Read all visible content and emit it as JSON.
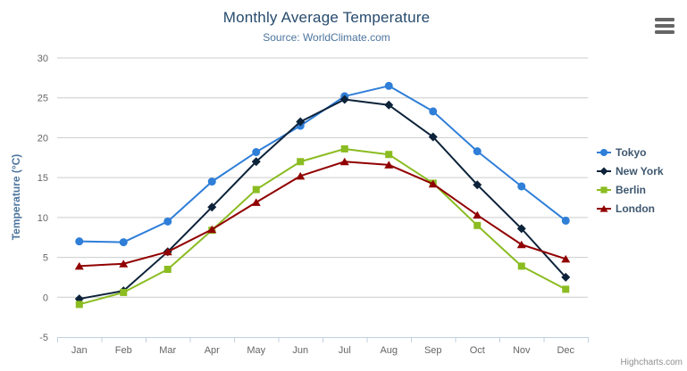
{
  "header": {
    "title": "Monthly Average Temperature",
    "subtitle": "Source: WorldClimate.com"
  },
  "icons": {
    "context_menu": "hamburger-icon"
  },
  "credit": {
    "text": "Highcharts.com"
  },
  "chart_data": {
    "type": "line",
    "title": "Monthly Average Temperature",
    "subtitle": "Source: WorldClimate.com",
    "categories": [
      "Jan",
      "Feb",
      "Mar",
      "Apr",
      "May",
      "Jun",
      "Jul",
      "Aug",
      "Sep",
      "Oct",
      "Nov",
      "Dec"
    ],
    "series": [
      {
        "name": "Tokyo",
        "color": "#2f7ed8",
        "marker": "circle",
        "values": [
          7.0,
          6.9,
          9.5,
          14.5,
          18.2,
          21.5,
          25.2,
          26.5,
          23.3,
          18.3,
          13.9,
          9.6
        ]
      },
      {
        "name": "New York",
        "color": "#0d233a",
        "marker": "diamond",
        "values": [
          -0.2,
          0.8,
          5.7,
          11.3,
          17.0,
          22.0,
          24.8,
          24.1,
          20.1,
          14.1,
          8.6,
          2.5
        ]
      },
      {
        "name": "Berlin",
        "color": "#8bbc21",
        "marker": "square",
        "values": [
          -0.9,
          0.6,
          3.5,
          8.4,
          13.5,
          17.0,
          18.6,
          17.9,
          14.3,
          9.0,
          3.9,
          1.0
        ]
      },
      {
        "name": "London",
        "color": "#910000",
        "marker": "triangle",
        "values": [
          3.9,
          4.2,
          5.7,
          8.5,
          11.9,
          15.2,
          17.0,
          16.6,
          14.2,
          10.3,
          6.6,
          4.8
        ]
      }
    ],
    "xlabel": "",
    "ylabel": "Temperature (°C)",
    "ylim": [
      -5,
      30
    ],
    "ytick_step": 5,
    "grid": true,
    "legend_position": "right",
    "colors": {
      "gridline": "#cccccc",
      "axis_line": "#c0d0e0",
      "axis_label": "#666666",
      "title": "#274b6d",
      "subtitle": "#4d759e",
      "legend_text": "#3E576F"
    }
  }
}
